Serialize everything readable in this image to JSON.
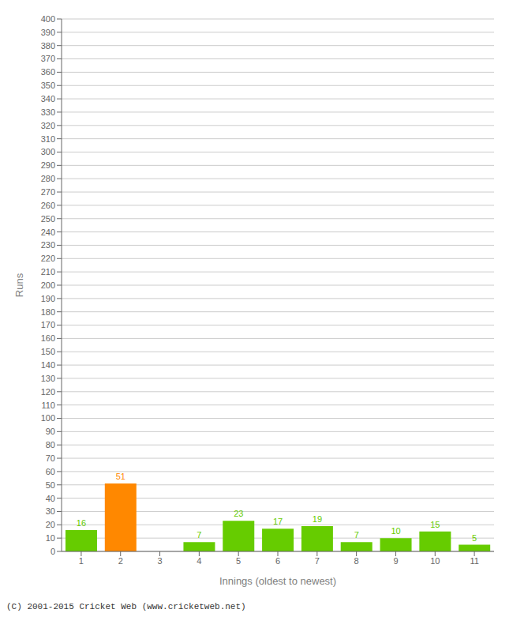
{
  "chart_data": {
    "type": "bar",
    "categories": [
      "1",
      "2",
      "3",
      "4",
      "5",
      "6",
      "7",
      "8",
      "9",
      "10",
      "11"
    ],
    "values": [
      16,
      51,
      0,
      7,
      23,
      17,
      19,
      7,
      10,
      15,
      5
    ],
    "colors": [
      "#66cc00",
      "#ff8800",
      "#66cc00",
      "#66cc00",
      "#66cc00",
      "#66cc00",
      "#66cc00",
      "#66cc00",
      "#66cc00",
      "#66cc00",
      "#66cc00"
    ],
    "xlabel": "Innings (oldest to newest)",
    "ylabel": "Runs",
    "ylim": [
      0,
      400
    ],
    "yticks": [
      0,
      10,
      20,
      30,
      40,
      50,
      60,
      70,
      80,
      90,
      100,
      110,
      120,
      130,
      140,
      150,
      160,
      170,
      180,
      190,
      200,
      210,
      220,
      230,
      240,
      250,
      260,
      270,
      280,
      290,
      300,
      310,
      320,
      330,
      340,
      350,
      360,
      370,
      380,
      390,
      400
    ],
    "grid": true,
    "data_labels": true,
    "annotations": [
      "(C) 2001-2015 Cricket Web (www.cricketweb.net)"
    ]
  }
}
